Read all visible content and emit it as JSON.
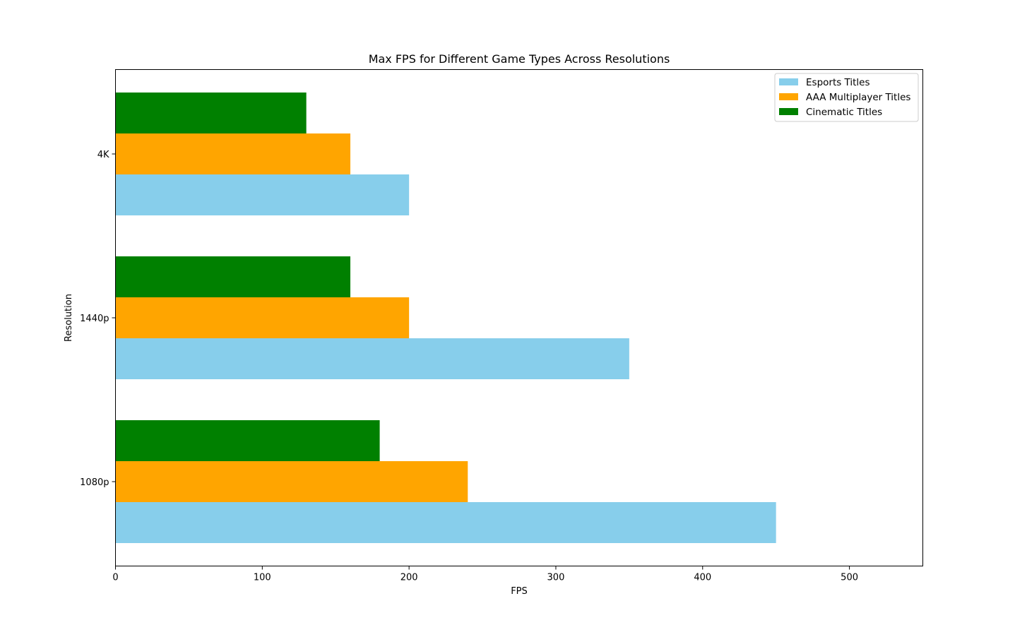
{
  "chart_data": {
    "type": "bar",
    "orientation": "horizontal",
    "title": "Max FPS for Different Game Types Across Resolutions",
    "xlabel": "FPS",
    "ylabel": "Resolution",
    "categories": [
      "1080p",
      "1440p",
      "4K"
    ],
    "series": [
      {
        "name": "Esports Titles",
        "color": "#87ceeb",
        "values": [
          450,
          350,
          200
        ]
      },
      {
        "name": "AAA Multiplayer Titles",
        "color": "#ffa500",
        "values": [
          240,
          200,
          160
        ]
      },
      {
        "name": "Cinematic Titles",
        "color": "#008000",
        "values": [
          180,
          160,
          130
        ]
      }
    ],
    "xlim": [
      0,
      550
    ],
    "xticks": [
      0,
      100,
      200,
      300,
      400,
      500
    ],
    "grid": false,
    "legend_position": "top-right"
  }
}
